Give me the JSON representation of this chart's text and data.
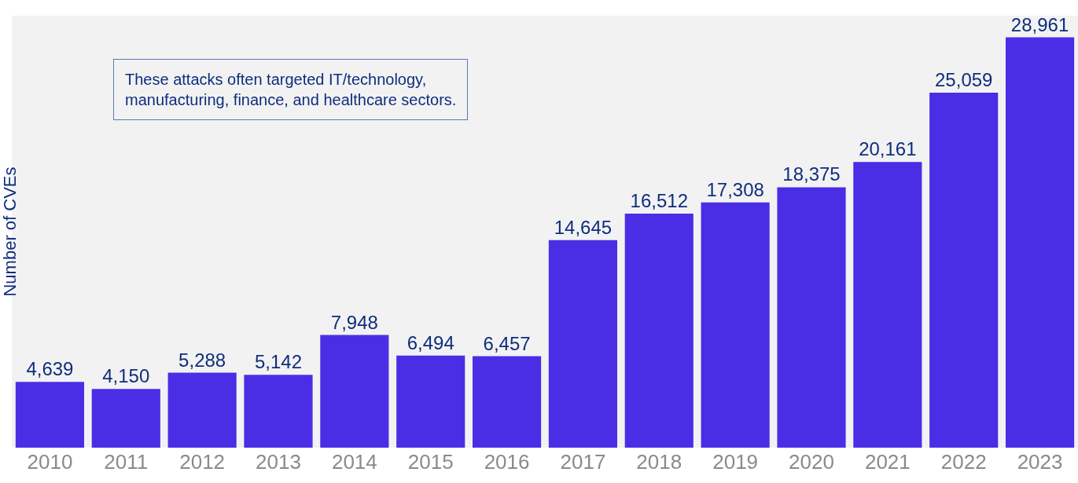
{
  "chart_data": {
    "type": "bar",
    "ylabel": "Number of CVEs",
    "categories": [
      "2010",
      "2011",
      "2012",
      "2013",
      "2014",
      "2015",
      "2016",
      "2017",
      "2018",
      "2019",
      "2020",
      "2021",
      "2022",
      "2023"
    ],
    "values": [
      4639,
      4150,
      5288,
      5142,
      7948,
      6494,
      6457,
      14645,
      16512,
      17308,
      18375,
      20161,
      25059,
      28961
    ],
    "value_labels": [
      "4,639",
      "4,150",
      "5,288",
      "5,142",
      "7,948",
      "6,494",
      "6,457",
      "14,645",
      "16,512",
      "17,308",
      "18,375",
      "20,161",
      "25,059",
      "28,961"
    ],
    "color": "#4a2ee6",
    "grid": false,
    "legend": false,
    "annotations": [
      "These attacks often targeted IT/technology,\nmanufacturing, finance, and healthcare sectors."
    ]
  }
}
